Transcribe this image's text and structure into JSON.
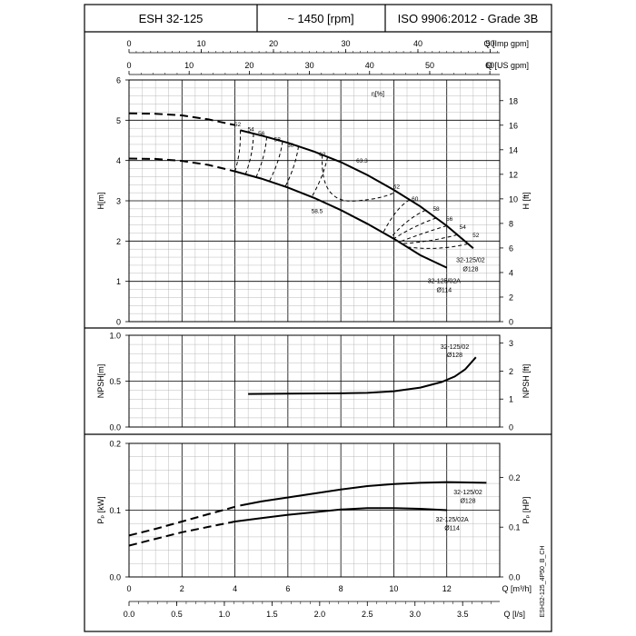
{
  "header": {
    "model": "ESH 32-125",
    "speed": "~ 1450 [rpm]",
    "standard": "ISO 9906:2012 - Grade 3B"
  },
  "side_code": "ESH32-125_4P50_B_CH",
  "colors": {
    "line": "#000000",
    "grid": "#aaaaaa",
    "grid_major": "#000000"
  },
  "top_axes": {
    "imp_gpm": {
      "label": "Q [Imp gpm]",
      "ticks": [
        "0",
        "10",
        "20",
        "30",
        "40",
        "50"
      ]
    },
    "us_gpm": {
      "label": "Q [US gpm]",
      "ticks": [
        "0",
        "10",
        "20",
        "30",
        "40",
        "50",
        "60"
      ]
    }
  },
  "bottom_axes": {
    "m3h": {
      "label": "Q [m³/h]",
      "ticks": [
        "0",
        "2",
        "4",
        "6",
        "8",
        "10",
        "12"
      ]
    },
    "ls": {
      "label": "Q [l/s]",
      "ticks": [
        "0.0",
        "0.5",
        "1.0",
        "1.5",
        "2.0",
        "2.5",
        "3.0",
        "3.5"
      ]
    }
  },
  "chart_data": [
    {
      "type": "line",
      "panel": "head",
      "xlabel": "Q [m³/h]",
      "ylabel": "H[m]",
      "ylabel_right": "H [ft]",
      "xlim": [
        0,
        14
      ],
      "ylim": [
        0,
        6
      ],
      "y_ticks": [
        "0",
        "1",
        "2",
        "3",
        "4",
        "5",
        "6"
      ],
      "y_ticks_right": [
        "0",
        "2",
        "4",
        "6",
        "8",
        "10",
        "12",
        "14",
        "16",
        "18"
      ],
      "eta_label": "η[%]",
      "grid": true,
      "series": [
        {
          "name": "32-125/02",
          "label_line2": "Ø128",
          "dashed_part": [
            [
              0,
              5.17
            ],
            [
              1,
              5.16
            ],
            [
              2,
              5.12
            ],
            [
              3,
              5.02
            ],
            [
              4,
              4.88
            ]
          ],
          "solid_part": [
            [
              4.2,
              4.75
            ],
            [
              5,
              4.62
            ],
            [
              6,
              4.44
            ],
            [
              7,
              4.22
            ],
            [
              8,
              3.96
            ],
            [
              9,
              3.64
            ],
            [
              10,
              3.27
            ],
            [
              11,
              2.86
            ],
            [
              12,
              2.38
            ],
            [
              13,
              1.82
            ]
          ]
        },
        {
          "name": "32-125/02A",
          "label_line2": "Ø114",
          "dashed_part": [
            [
              0,
              4.05
            ],
            [
              1,
              4.04
            ],
            [
              2,
              3.99
            ],
            [
              3,
              3.89
            ],
            [
              4,
              3.73
            ]
          ],
          "solid_part": [
            [
              4,
              3.73
            ],
            [
              5,
              3.55
            ],
            [
              6,
              3.33
            ],
            [
              7,
              3.07
            ],
            [
              8,
              2.77
            ],
            [
              9,
              2.43
            ],
            [
              10,
              2.06
            ],
            [
              11,
              1.65
            ],
            [
              12,
              1.34
            ]
          ]
        }
      ],
      "efficiency_labels": [
        "52",
        "54",
        "56",
        "58",
        "60",
        "62",
        "63.3",
        "62",
        "60",
        "58",
        "56",
        "54",
        "52",
        "58.5"
      ]
    },
    {
      "type": "line",
      "panel": "npsh",
      "ylabel": "NPSH[m]",
      "ylabel_right": "NPSH [ft]",
      "xlim": [
        0,
        14
      ],
      "ylim": [
        0,
        1.0
      ],
      "y_ticks": [
        "0.0",
        "0.5",
        "1.0"
      ],
      "y_ticks_right": [
        "0",
        "1",
        "2",
        "3"
      ],
      "grid": true,
      "series": [
        {
          "name": "32-125/02",
          "label_line2": "Ø128",
          "points": [
            [
              4.5,
              0.36
            ],
            [
              6,
              0.363
            ],
            [
              8,
              0.367
            ],
            [
              9,
              0.372
            ],
            [
              10,
              0.39
            ],
            [
              11,
              0.43
            ],
            [
              11.8,
              0.49
            ],
            [
              12.3,
              0.55
            ],
            [
              12.7,
              0.63
            ],
            [
              13.1,
              0.76
            ]
          ]
        }
      ]
    },
    {
      "type": "line",
      "panel": "power",
      "ylabel": "Pₚ [kW]",
      "ylabel_right": "Pₚ [HP]",
      "xlim": [
        0,
        14
      ],
      "ylim": [
        0,
        0.2
      ],
      "y_ticks": [
        "0.0",
        "0.1",
        "0.2"
      ],
      "y_ticks_right": [
        "0.0",
        "0.1",
        "0.2"
      ],
      "grid": true,
      "series": [
        {
          "name": "32-125/02",
          "label_line2": "Ø128",
          "dashed_part": [
            [
              0,
              0.062
            ],
            [
              1,
              0.072
            ],
            [
              2,
              0.083
            ],
            [
              3,
              0.094
            ],
            [
              4,
              0.105
            ]
          ],
          "solid_part": [
            [
              4.2,
              0.107
            ],
            [
              5,
              0.113
            ],
            [
              6,
              0.119
            ],
            [
              7,
              0.125
            ],
            [
              8,
              0.131
            ],
            [
              9,
              0.136
            ],
            [
              10,
              0.139
            ],
            [
              11,
              0.141
            ],
            [
              12,
              0.142
            ],
            [
              13.5,
              0.141
            ]
          ]
        },
        {
          "name": "32-125/02A",
          "label_line2": "Ø114",
          "dashed_part": [
            [
              0,
              0.047
            ],
            [
              1,
              0.057
            ],
            [
              2,
              0.067
            ],
            [
              3,
              0.075
            ],
            [
              4,
              0.083
            ]
          ],
          "solid_part": [
            [
              4,
              0.083
            ],
            [
              5,
              0.088
            ],
            [
              6,
              0.093
            ],
            [
              7,
              0.097
            ],
            [
              8,
              0.101
            ],
            [
              9,
              0.103
            ],
            [
              10,
              0.103
            ],
            [
              11,
              0.102
            ],
            [
              12,
              0.1
            ]
          ]
        }
      ]
    }
  ]
}
